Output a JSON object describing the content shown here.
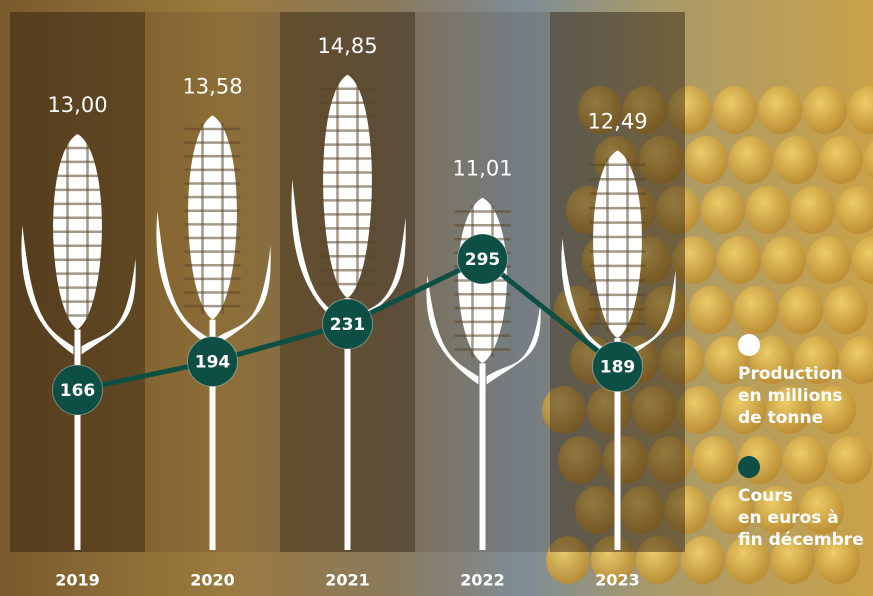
{
  "chart_data": {
    "type": "corn-pictogram",
    "categories": [
      "2019",
      "2020",
      "2021",
      "2022",
      "2023"
    ],
    "series": [
      {
        "name": "Production\nen millions\nde tonne",
        "color": "#ffffff",
        "values": [
          13.0,
          13.58,
          14.85,
          11.01,
          12.49
        ],
        "value_labels": [
          "13,00",
          "13,58",
          "14,85",
          "11,01",
          "12,49"
        ]
      },
      {
        "name": "Cours\nen euros à\nfin décembre",
        "color": "#0d4f45",
        "values": [
          166,
          194,
          231,
          295,
          189
        ]
      }
    ]
  }
}
